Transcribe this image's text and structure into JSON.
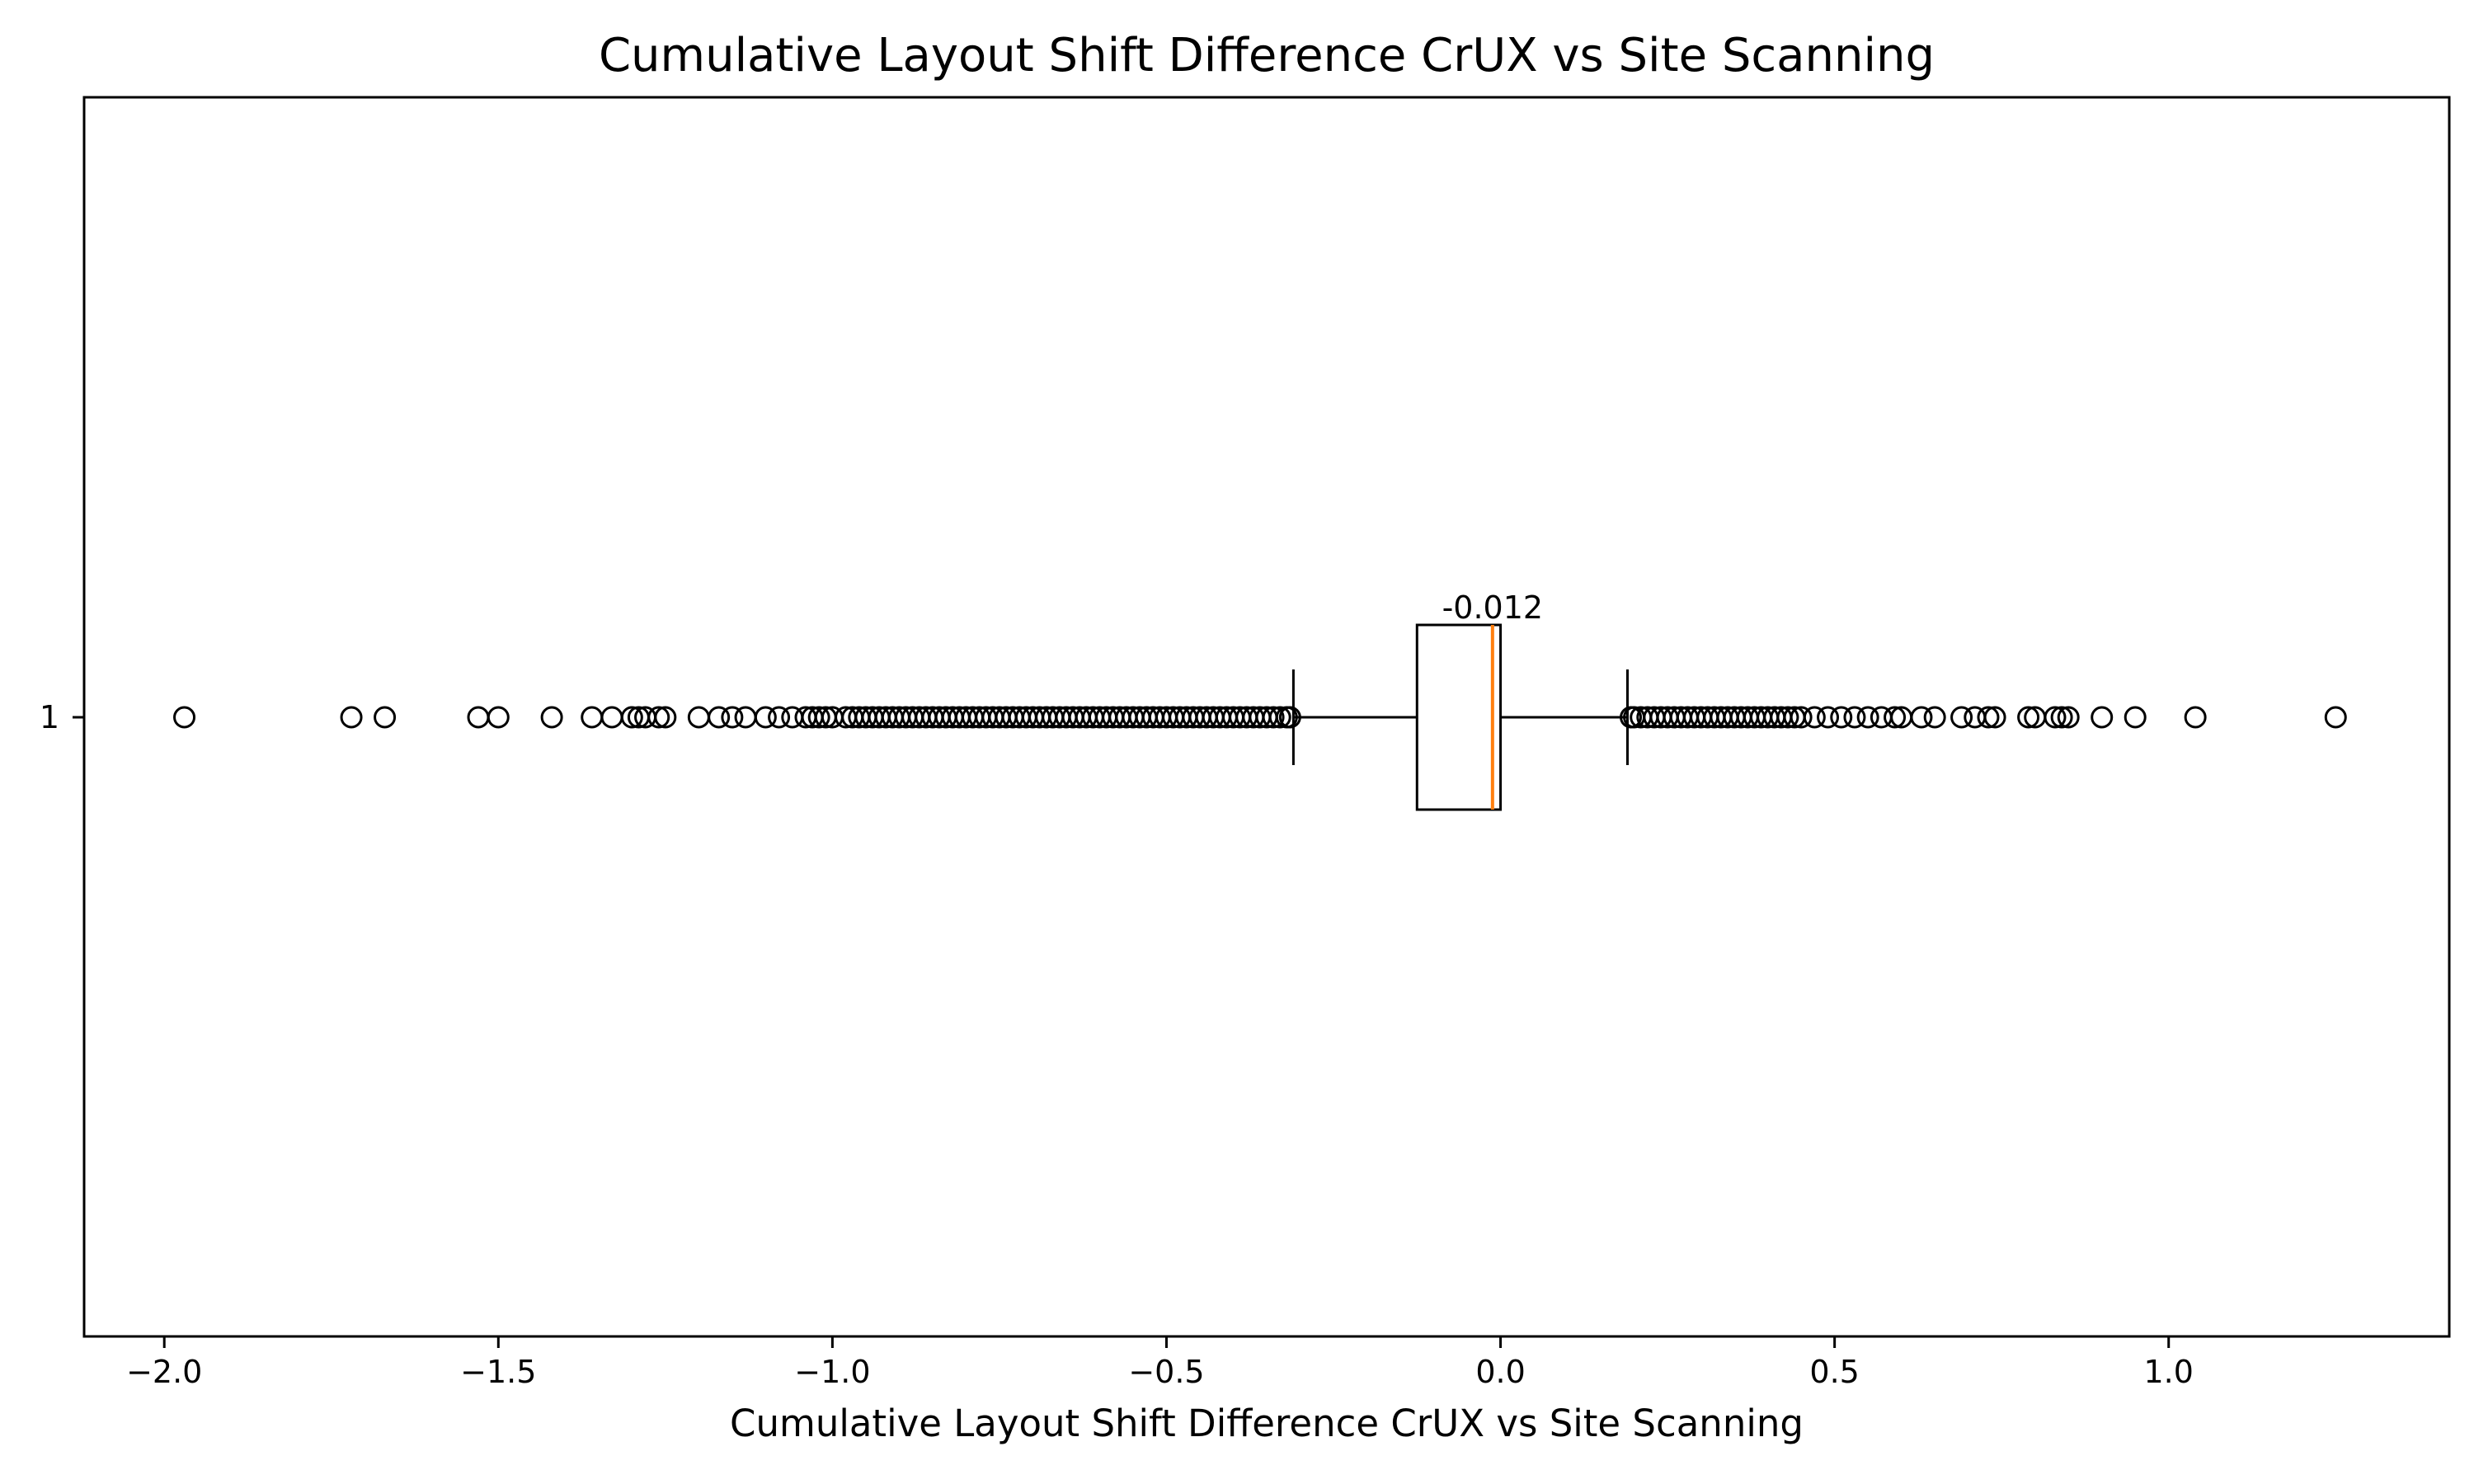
{
  "chart_data": {
    "type": "boxplot",
    "orientation": "horizontal",
    "title": "Cumulative Layout Shift Difference CrUX vs Site Scanning",
    "xlabel": "Cumulative Layout Shift Difference CrUX vs Site Scanning",
    "ylabel": "",
    "xlim": [
      -2.12,
      1.42
    ],
    "x_ticks": [
      -2.0,
      -1.5,
      -1.0,
      -0.5,
      0.0,
      0.5,
      1.0
    ],
    "x_tick_labels": [
      "−2.0",
      "−1.5",
      "−1.0",
      "−0.5",
      "0.0",
      "0.5",
      "1.0"
    ],
    "y_tick_labels": [
      "1"
    ],
    "grid": false,
    "colors": {
      "median": "#ff7f0e",
      "box": "#000000"
    },
    "box": {
      "category": "1",
      "whisker_low": -0.31,
      "q1": -0.125,
      "median": -0.012,
      "q3": 0.0,
      "whisker_high": 0.19
    },
    "median_label": "-0.012",
    "outliers_low": [
      -1.97,
      -1.72,
      -1.67,
      -1.53,
      -1.5,
      -1.42,
      -1.36,
      -1.33,
      -1.3,
      -1.29,
      -1.28,
      -1.26,
      -1.25,
      -1.2,
      -1.17,
      -1.15,
      -1.13,
      -1.1,
      -1.08,
      -1.06,
      -1.04,
      -1.03,
      -1.02,
      -1.01,
      -1.0,
      -0.98,
      -0.97,
      -0.96,
      -0.95,
      -0.94,
      -0.93,
      -0.92,
      -0.91,
      -0.9,
      -0.89,
      -0.88,
      -0.87,
      -0.86,
      -0.85,
      -0.84,
      -0.83,
      -0.82,
      -0.81,
      -0.8,
      -0.79,
      -0.78,
      -0.77,
      -0.76,
      -0.75,
      -0.74,
      -0.73,
      -0.72,
      -0.71,
      -0.7,
      -0.69,
      -0.68,
      -0.67,
      -0.66,
      -0.65,
      -0.64,
      -0.63,
      -0.62,
      -0.61,
      -0.6,
      -0.59,
      -0.58,
      -0.57,
      -0.56,
      -0.55,
      -0.54,
      -0.53,
      -0.52,
      -0.51,
      -0.5,
      -0.49,
      -0.48,
      -0.47,
      -0.46,
      -0.45,
      -0.44,
      -0.43,
      -0.42,
      -0.41,
      -0.4,
      -0.39,
      -0.38,
      -0.37,
      -0.36,
      -0.35,
      -0.34,
      -0.33,
      -0.32,
      -0.315
    ],
    "outliers_high": [
      0.195,
      0.2,
      0.21,
      0.22,
      0.23,
      0.24,
      0.25,
      0.26,
      0.27,
      0.28,
      0.29,
      0.3,
      0.31,
      0.32,
      0.33,
      0.34,
      0.35,
      0.36,
      0.37,
      0.38,
      0.39,
      0.4,
      0.41,
      0.42,
      0.43,
      0.44,
      0.45,
      0.47,
      0.49,
      0.51,
      0.53,
      0.55,
      0.57,
      0.59,
      0.6,
      0.63,
      0.65,
      0.69,
      0.71,
      0.73,
      0.74,
      0.79,
      0.8,
      0.83,
      0.84,
      0.85,
      0.9,
      0.95,
      1.04,
      1.25
    ]
  }
}
